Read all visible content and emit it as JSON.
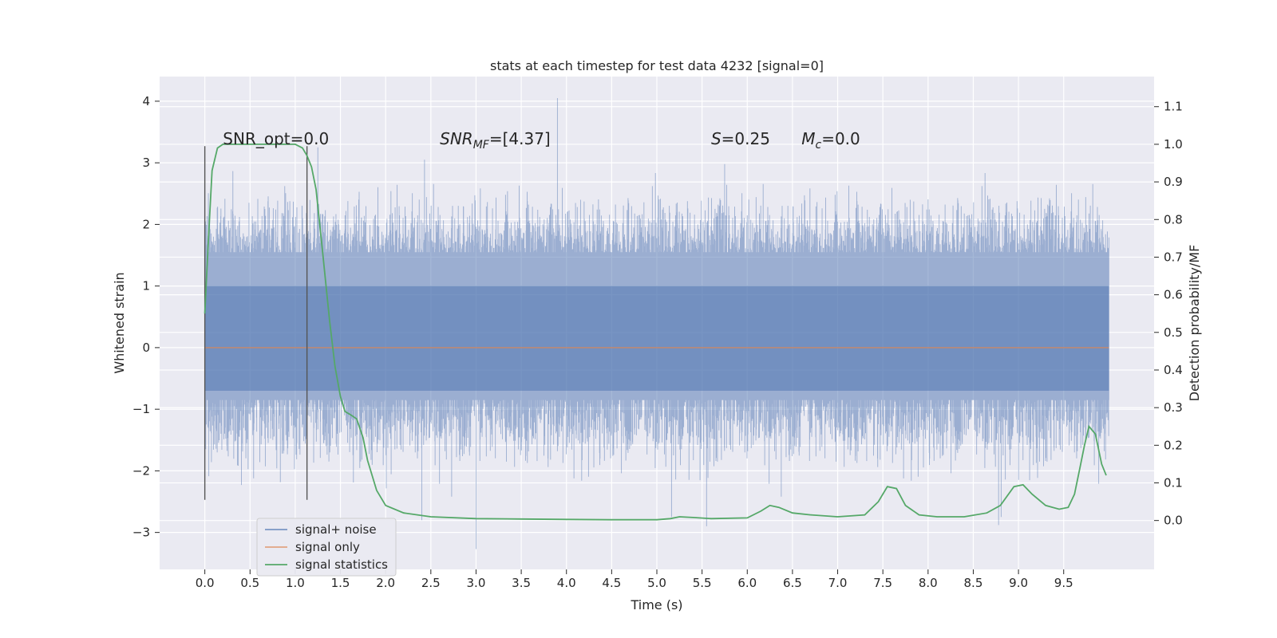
{
  "chart_data": {
    "type": "line",
    "title": "stats at each timestep for test data 4232 [signal=0]",
    "xlabel": "Time (s)",
    "ylabel": "Whitened strain",
    "y2label": "Detection probability/MF",
    "xlim": [
      -0.5,
      10.5
    ],
    "ylim": [
      -3.6,
      4.4
    ],
    "y2lim": [
      -0.13,
      1.18
    ],
    "grid": true,
    "legend_position": "lower-left",
    "x_ticks": [
      "0.0",
      "0.5",
      "1.0",
      "1.5",
      "2.0",
      "2.5",
      "3.0",
      "3.5",
      "4.0",
      "4.5",
      "5.0",
      "5.5",
      "6.0",
      "6.5",
      "7.0",
      "7.5",
      "8.0",
      "8.5",
      "9.0",
      "9.5"
    ],
    "y_ticks": [
      "−3",
      "−2",
      "−1",
      "0",
      "1",
      "2",
      "3",
      "4"
    ],
    "y2_ticks": [
      "0.0",
      "0.1",
      "0.2",
      "0.3",
      "0.4",
      "0.5",
      "0.6",
      "0.7",
      "0.8",
      "0.9",
      "1.0",
      "1.1"
    ],
    "annotations": [
      {
        "label": "SNR_opt=0.0",
        "x": 0.2,
        "y": 3.3,
        "parts": [
          {
            "t": "SNR_opt=0.0",
            "i": false
          }
        ]
      },
      {
        "label": "SNR_MF=[4.37]",
        "x": 2.6,
        "y": 3.3,
        "parts": [
          {
            "t": "SNR",
            "i": true
          },
          {
            "t": "MF",
            "i": true,
            "sub": true
          },
          {
            "t": "=[4.37]",
            "i": false
          }
        ]
      },
      {
        "label": "S=0.25",
        "x": 5.6,
        "y": 3.3,
        "parts": [
          {
            "t": "S",
            "i": true
          },
          {
            "t": "=0.25",
            "i": false
          }
        ]
      },
      {
        "label": "M_c=0.0",
        "x": 6.6,
        "y": 3.3,
        "parts": [
          {
            "t": "M",
            "i": true
          },
          {
            "t": "c",
            "i": true,
            "sub": true
          },
          {
            "t": "=0.0",
            "i": false
          }
        ]
      }
    ],
    "vlines": [
      {
        "x": 0.0,
        "ymin": -2.47,
        "ymax": 3.27
      },
      {
        "x": 1.13,
        "ymin": -2.47,
        "ymax": 3.27
      }
    ],
    "series": [
      {
        "name": "signal+ noise",
        "color": "#4c72b0",
        "alpha": 0.5,
        "kind": "noise",
        "x_range": [
          0.0,
          10.0
        ],
        "samples": 4096,
        "envelope": {
          "typical_max": 1.55,
          "typical_min": -0.85,
          "peak_max": 4.05,
          "peak_min": -3.27
        }
      },
      {
        "name": "signal only",
        "color": "#dd8452",
        "values_x": [
          0.0,
          10.0
        ],
        "values_y": [
          0.0,
          0.0
        ]
      },
      {
        "name": "signal statistics",
        "color": "#55a868",
        "axis": "right",
        "x": [
          0.0,
          0.04,
          0.08,
          0.14,
          0.2,
          0.3,
          0.5,
          0.7,
          0.9,
          1.0,
          1.08,
          1.13,
          1.18,
          1.23,
          1.3,
          1.38,
          1.44,
          1.5,
          1.55,
          1.62,
          1.68,
          1.75,
          1.8,
          1.9,
          2.0,
          2.2,
          2.5,
          3.0,
          3.5,
          4.0,
          4.5,
          5.0,
          5.15,
          5.25,
          5.4,
          5.6,
          6.0,
          6.15,
          6.25,
          6.35,
          6.5,
          6.7,
          7.0,
          7.3,
          7.45,
          7.55,
          7.65,
          7.75,
          7.9,
          8.1,
          8.4,
          8.65,
          8.8,
          8.95,
          9.05,
          9.15,
          9.3,
          9.45,
          9.55,
          9.62,
          9.68,
          9.73,
          9.78,
          9.85,
          9.92,
          9.97
        ],
        "y": [
          0.55,
          0.75,
          0.93,
          0.99,
          1.0,
          1.0,
          1.0,
          1.0,
          1.0,
          1.0,
          0.99,
          0.97,
          0.94,
          0.88,
          0.72,
          0.53,
          0.41,
          0.33,
          0.29,
          0.28,
          0.27,
          0.22,
          0.16,
          0.08,
          0.04,
          0.02,
          0.01,
          0.005,
          0.004,
          0.003,
          0.002,
          0.002,
          0.005,
          0.01,
          0.008,
          0.005,
          0.007,
          0.025,
          0.04,
          0.035,
          0.02,
          0.015,
          0.01,
          0.015,
          0.05,
          0.09,
          0.085,
          0.04,
          0.015,
          0.01,
          0.01,
          0.02,
          0.04,
          0.09,
          0.095,
          0.07,
          0.04,
          0.03,
          0.035,
          0.07,
          0.14,
          0.2,
          0.25,
          0.23,
          0.15,
          0.12
        ]
      }
    ]
  }
}
